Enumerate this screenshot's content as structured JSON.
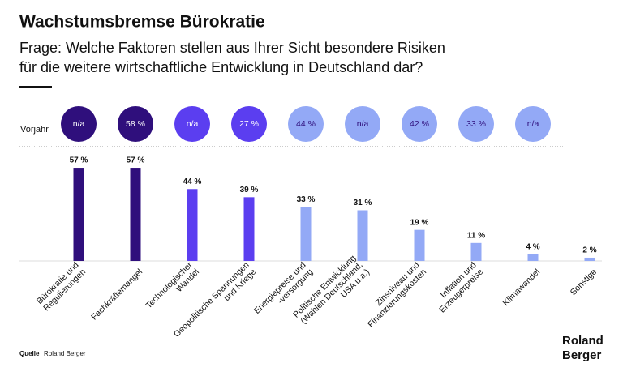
{
  "chart_data": {
    "type": "bar",
    "title": "Wachstumsbremse Bürokratie",
    "subtitle": [
      "Frage: Welche Faktoren stellen aus Ihrer Sicht besondere Risiken",
      "für die weitere wirtschaftliche Entwicklung in Deutschland dar?"
    ],
    "categories": [
      [
        "Bürokratie und",
        "Regulierungen"
      ],
      [
        "Fachkräftemangel"
      ],
      [
        "Technologischer",
        "Wandel"
      ],
      [
        "Geopolitische Spannungen",
        "und Kriege"
      ],
      [
        "Energiepreise und",
        "-versorgung"
      ],
      [
        "Politische Entwicklung",
        "(Wahlen Deutschland,",
        "USA u.a.)"
      ],
      [
        "Zinsniveau und",
        "Finanzierungskosten"
      ],
      [
        "Inflation und",
        "Erzeugerpreise"
      ],
      [
        "Klimawandel"
      ],
      [
        "Sonstige"
      ]
    ],
    "values": [
      57,
      57,
      44,
      39,
      33,
      31,
      19,
      11,
      4,
      2
    ],
    "value_labels": [
      "57 %",
      "57 %",
      "44 %",
      "39 %",
      "33 %",
      "31 %",
      "19 %",
      "11 %",
      "4 %",
      "2 %"
    ],
    "colors": [
      "#2f0f7c",
      "#2f0f7c",
      "#5b3ef0",
      "#5b3ef0",
      "#93a9f6",
      "#93a9f6",
      "#93a9f6",
      "#93a9f6",
      "#93a9f6",
      "#93a9f6"
    ],
    "ylim": [
      0,
      60
    ],
    "prior": {
      "label": "Vorjahr",
      "values": [
        null,
        58,
        null,
        27,
        44,
        null,
        42,
        33,
        null,
        null
      ],
      "value_labels": [
        "n/a",
        "58 %",
        "n/a",
        "27 %",
        "44 %",
        "n/a",
        "42 %",
        "33 %",
        "n/a",
        null
      ]
    },
    "source_label": "Quelle",
    "source": "Roland Berger",
    "logo": [
      "Roland",
      "Berger"
    ]
  }
}
